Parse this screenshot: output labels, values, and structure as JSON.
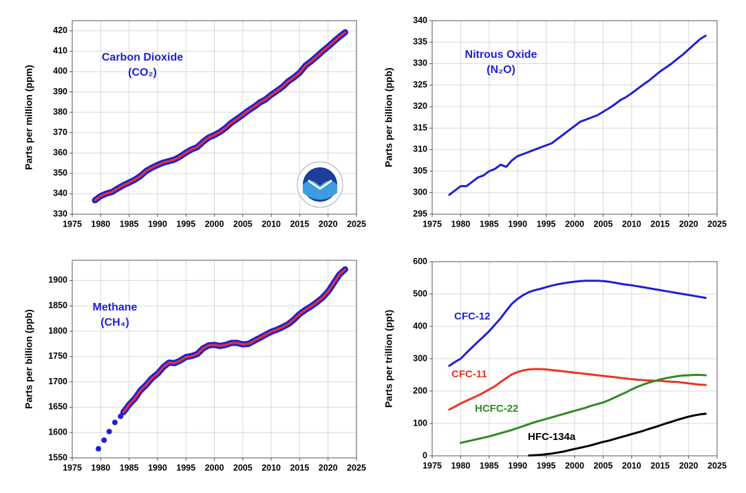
{
  "chart_data": [
    {
      "type": "line",
      "ylabel": "Parts per million (ppm)",
      "annotations": [
        "Carbon Dioxide",
        "(CO₂)"
      ],
      "logo": true,
      "xlim": [
        1975,
        2025
      ],
      "xticks": [
        1975,
        1980,
        1985,
        1990,
        1995,
        2000,
        2005,
        2010,
        2015,
        2020,
        2025
      ],
      "ylim": [
        330,
        425
      ],
      "yticks": [
        330,
        340,
        350,
        360,
        370,
        380,
        390,
        400,
        410,
        420
      ],
      "grid": true,
      "series": [
        {
          "color": "#1f1fd6",
          "style": "band",
          "x": [
            1979,
            1980,
            1981,
            1982,
            1983,
            1984,
            1985,
            1986,
            1987,
            1988,
            1989,
            1990,
            1991,
            1992,
            1993,
            1994,
            1995,
            1996,
            1997,
            1998,
            1999,
            2000,
            2001,
            2002,
            2003,
            2004,
            2005,
            2006,
            2007,
            2008,
            2009,
            2010,
            2011,
            2012,
            2013,
            2014,
            2015,
            2016,
            2017,
            2018,
            2019,
            2020,
            2021,
            2022,
            2023
          ],
          "values": [
            336.8,
            338.9,
            340.1,
            340.9,
            342.6,
            344.2,
            345.5,
            346.9,
            348.7,
            351.2,
            352.8,
            354.1,
            355.3,
            356.0,
            356.8,
            358.3,
            360.2,
            361.8,
            362.9,
            365.5,
            367.6,
            368.8,
            370.4,
            372.4,
            374.9,
            376.8,
            378.8,
            380.9,
            382.7,
            384.8,
            386.3,
            388.6,
            390.5,
            392.5,
            395.2,
            397.1,
            399.4,
            402.9,
            405.0,
            407.4,
            409.9,
            412.2,
            414.7,
            417.1,
            419.3
          ]
        },
        {
          "color": "#ee3322",
          "style": "line",
          "x": [
            1979,
            1980,
            1981,
            1982,
            1983,
            1984,
            1985,
            1986,
            1987,
            1988,
            1989,
            1990,
            1991,
            1992,
            1993,
            1994,
            1995,
            1996,
            1997,
            1998,
            1999,
            2000,
            2001,
            2002,
            2003,
            2004,
            2005,
            2006,
            2007,
            2008,
            2009,
            2010,
            2011,
            2012,
            2013,
            2014,
            2015,
            2016,
            2017,
            2018,
            2019,
            2020,
            2021,
            2022,
            2023
          ],
          "values": [
            336.8,
            338.9,
            340.1,
            340.9,
            342.6,
            344.2,
            345.5,
            346.9,
            348.7,
            351.2,
            352.8,
            354.1,
            355.3,
            356.0,
            356.8,
            358.3,
            360.2,
            361.8,
            362.9,
            365.5,
            367.6,
            368.8,
            370.4,
            372.4,
            374.9,
            376.8,
            378.8,
            380.9,
            382.7,
            384.8,
            386.3,
            388.6,
            390.5,
            392.5,
            395.2,
            397.1,
            399.4,
            402.9,
            405.0,
            407.4,
            409.9,
            412.2,
            414.7,
            417.1,
            419.3
          ]
        }
      ]
    },
    {
      "type": "line",
      "ylabel": "Parts per billion (ppb)",
      "annotations": [
        "Nitrous Oxide",
        "(N₂O)"
      ],
      "xlim": [
        1975,
        2025
      ],
      "xticks": [
        1975,
        1980,
        1985,
        1990,
        1995,
        2000,
        2005,
        2010,
        2015,
        2020,
        2025
      ],
      "ylim": [
        295,
        340
      ],
      "yticks": [
        295,
        300,
        305,
        310,
        315,
        320,
        325,
        330,
        335,
        340
      ],
      "grid": true,
      "series": [
        {
          "color": "#1f1fd6",
          "style": "line",
          "x": [
            1978,
            1979,
            1980,
            1981,
            1982,
            1983,
            1984,
            1985,
            1986,
            1987,
            1988,
            1989,
            1990,
            1991,
            1992,
            1993,
            1994,
            1995,
            1996,
            1997,
            1998,
            1999,
            2000,
            2001,
            2002,
            2003,
            2004,
            2005,
            2006,
            2007,
            2008,
            2009,
            2010,
            2011,
            2012,
            2013,
            2014,
            2015,
            2016,
            2017,
            2018,
            2019,
            2020,
            2021,
            2022,
            2023
          ],
          "values": [
            299.5,
            300.5,
            301.5,
            301.5,
            302.5,
            303.5,
            304,
            305,
            305.5,
            306.5,
            306,
            307.5,
            308.5,
            309,
            309.5,
            310,
            310.5,
            311,
            311.5,
            312.5,
            313.5,
            314.5,
            315.5,
            316.5,
            317,
            317.5,
            318,
            318.8,
            319.6,
            320.5,
            321.5,
            322.2,
            323.1,
            324.1,
            325.1,
            326,
            327.1,
            328.2,
            329.1,
            330,
            331.1,
            332.1,
            333.3,
            334.5,
            335.7,
            336.5
          ]
        }
      ]
    },
    {
      "type": "line",
      "ylabel": "Parts per billion (ppb)",
      "annotations": [
        "Methane",
        "(CH₄)"
      ],
      "xlim": [
        1975,
        2025
      ],
      "xticks": [
        1975,
        1980,
        1985,
        1990,
        1995,
        2000,
        2005,
        2010,
        2015,
        2020,
        2025
      ],
      "ylim": [
        1550,
        1940
      ],
      "yticks": [
        1550,
        1600,
        1650,
        1700,
        1750,
        1800,
        1850,
        1900
      ],
      "grid": true,
      "series": [
        {
          "color": "#1f1fd6",
          "style": "dots",
          "x": [
            1979.6,
            1980.6,
            1981.5,
            1982.5,
            1983.5
          ],
          "values": [
            1568,
            1585,
            1602,
            1620,
            1632
          ]
        },
        {
          "color": "#1f1fd6",
          "style": "band",
          "x": [
            1984,
            1985,
            1986,
            1987,
            1988,
            1989,
            1990,
            1991,
            1992,
            1993,
            1994,
            1995,
            1996,
            1997,
            1998,
            1999,
            2000,
            2001,
            2002,
            2003,
            2004,
            2005,
            2006,
            2007,
            2008,
            2009,
            2010,
            2011,
            2012,
            2013,
            2014,
            2015,
            2016,
            2017,
            2018,
            2019,
            2020,
            2021,
            2022,
            2023
          ],
          "values": [
            1640,
            1655,
            1667,
            1683,
            1694,
            1707,
            1716,
            1729,
            1738,
            1737,
            1742,
            1749,
            1751,
            1755,
            1766,
            1772,
            1773,
            1771,
            1773,
            1777,
            1777,
            1774,
            1775,
            1781,
            1787,
            1793,
            1799,
            1803,
            1808,
            1814,
            1823,
            1834,
            1842,
            1849,
            1857,
            1866,
            1878,
            1895,
            1912,
            1922
          ]
        },
        {
          "color": "#ee3322",
          "style": "line",
          "x": [
            1984,
            1985,
            1986,
            1987,
            1988,
            1989,
            1990,
            1991,
            1992,
            1993,
            1994,
            1995,
            1996,
            1997,
            1998,
            1999,
            2000,
            2001,
            2002,
            2003,
            2004,
            2005,
            2006,
            2007,
            2008,
            2009,
            2010,
            2011,
            2012,
            2013,
            2014,
            2015,
            2016,
            2017,
            2018,
            2019,
            2020,
            2021,
            2022,
            2023
          ],
          "values": [
            1640,
            1655,
            1667,
            1683,
            1694,
            1707,
            1716,
            1729,
            1738,
            1737,
            1742,
            1749,
            1751,
            1755,
            1766,
            1772,
            1773,
            1771,
            1773,
            1777,
            1777,
            1774,
            1775,
            1781,
            1787,
            1793,
            1799,
            1803,
            1808,
            1814,
            1823,
            1834,
            1842,
            1849,
            1857,
            1866,
            1878,
            1895,
            1912,
            1922
          ]
        }
      ]
    },
    {
      "type": "line",
      "ylabel": "Parts per trillion (ppt)",
      "xlim": [
        1975,
        2025
      ],
      "xticks": [
        1975,
        1980,
        1985,
        1990,
        1995,
        2000,
        2005,
        2010,
        2015,
        2020,
        2025
      ],
      "ylim": [
        0,
        600
      ],
      "yticks": [
        0,
        100,
        200,
        300,
        400,
        500,
        600
      ],
      "grid": true,
      "series": [
        {
          "name": "CFC-12",
          "color": "#1f1fd6",
          "style": "line",
          "x": [
            1978,
            1979,
            1980,
            1981,
            1982,
            1983,
            1984,
            1985,
            1986,
            1987,
            1988,
            1989,
            1990,
            1991,
            1992,
            1993,
            1994,
            1995,
            1996,
            1997,
            1998,
            1999,
            2000,
            2001,
            2002,
            2003,
            2004,
            2005,
            2006,
            2007,
            2008,
            2009,
            2010,
            2011,
            2012,
            2013,
            2014,
            2015,
            2016,
            2017,
            2018,
            2019,
            2020,
            2021,
            2022,
            2023
          ],
          "values": [
            278,
            290,
            300,
            318,
            335,
            352,
            368,
            385,
            405,
            425,
            448,
            470,
            485,
            497,
            506,
            512,
            516,
            521,
            526,
            530,
            533,
            536,
            538,
            540,
            541,
            541,
            541,
            540,
            538,
            535,
            532,
            529,
            527,
            524,
            521,
            518,
            515,
            512,
            509,
            506,
            503,
            500,
            497,
            494,
            491,
            488
          ]
        },
        {
          "name": "CFC-11",
          "color": "#ee3322",
          "style": "line",
          "x": [
            1978,
            1979,
            1980,
            1981,
            1982,
            1983,
            1984,
            1985,
            1986,
            1987,
            1988,
            1989,
            1990,
            1991,
            1992,
            1993,
            1994,
            1995,
            1996,
            1997,
            1998,
            1999,
            2000,
            2001,
            2002,
            2003,
            2004,
            2005,
            2006,
            2007,
            2008,
            2009,
            2010,
            2011,
            2012,
            2013,
            2014,
            2015,
            2016,
            2017,
            2018,
            2019,
            2020,
            2021,
            2022,
            2023
          ],
          "values": [
            143,
            152,
            162,
            170,
            178,
            186,
            195,
            205,
            215,
            228,
            240,
            252,
            259,
            264,
            267,
            268,
            268,
            267,
            265,
            263,
            261,
            259,
            257,
            255,
            253,
            251,
            249,
            247,
            245,
            243,
            241,
            239,
            237,
            235,
            234,
            233,
            232,
            232,
            230,
            229,
            228,
            226,
            224,
            222,
            220,
            219
          ]
        },
        {
          "name": "HCFC-22",
          "color": "#2e8b22",
          "style": "line",
          "x": [
            1980,
            1981,
            1982,
            1983,
            1984,
            1985,
            1986,
            1987,
            1988,
            1989,
            1990,
            1991,
            1992,
            1993,
            1994,
            1995,
            1996,
            1997,
            1998,
            1999,
            2000,
            2001,
            2002,
            2003,
            2004,
            2005,
            2006,
            2007,
            2008,
            2009,
            2010,
            2011,
            2012,
            2013,
            2014,
            2015,
            2016,
            2017,
            2018,
            2019,
            2020,
            2021,
            2022,
            2023
          ],
          "values": [
            40,
            44,
            48,
            52,
            56,
            60,
            65,
            70,
            75,
            80,
            86,
            92,
            98,
            104,
            109,
            114,
            119,
            124,
            129,
            134,
            139,
            144,
            149,
            155,
            160,
            165,
            172,
            180,
            188,
            196,
            205,
            213,
            220,
            226,
            231,
            236,
            240,
            243,
            246,
            248,
            249,
            250,
            250,
            249
          ]
        },
        {
          "name": "HFC-134a",
          "color": "#000000",
          "style": "line",
          "x": [
            1992,
            1993,
            1994,
            1995,
            1996,
            1997,
            1998,
            1999,
            2000,
            2001,
            2002,
            2003,
            2004,
            2005,
            2006,
            2007,
            2008,
            2009,
            2010,
            2011,
            2012,
            2013,
            2014,
            2015,
            2016,
            2017,
            2018,
            2019,
            2020,
            2021,
            2022,
            2023
          ],
          "values": [
            1,
            2,
            3,
            5,
            7,
            10,
            13,
            17,
            21,
            25,
            29,
            33,
            38,
            43,
            47,
            52,
            57,
            62,
            67,
            72,
            77,
            83,
            88,
            94,
            100,
            105,
            111,
            116,
            121,
            125,
            128,
            130
          ]
        }
      ]
    }
  ]
}
